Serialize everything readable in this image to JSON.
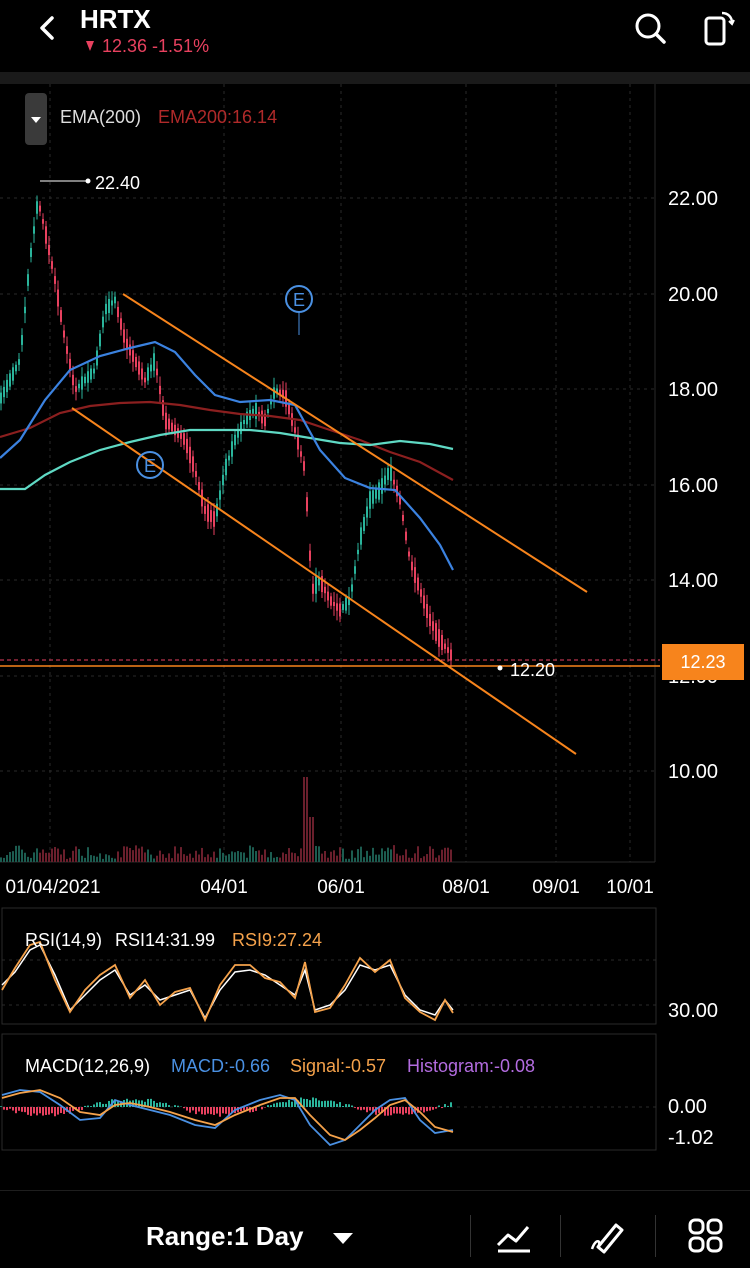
{
  "header": {
    "ticker": "HRTX",
    "change": "12.36 -1.51%",
    "colors": {
      "down": "#e8415f",
      "up": "#2ab49b"
    }
  },
  "indicator": {
    "ema_label": "EMA(200)",
    "ema_value": "EMA200:16.14"
  },
  "price_axis": [
    "22.00",
    "20.00",
    "18.00",
    "16.00",
    "14.00",
    "12.00",
    "10.00"
  ],
  "date_axis": [
    "01/04/2021",
    "04/01",
    "06/01",
    "08/01",
    "09/01",
    "10/01"
  ],
  "annotations": {
    "high_label": "22.40",
    "low_label": "12.20",
    "current_price": "12.23",
    "earnings_marker": "E"
  },
  "rsi": {
    "title": "RSI(14,9)",
    "rsi14": "RSI14:31.99",
    "rsi9": "RSI9:27.24",
    "axis_label": "30.00"
  },
  "macd": {
    "title": "MACD(12,26,9)",
    "macd": "MACD:-0.66",
    "signal": "Signal:-0.57",
    "histogram": "Histogram:-0.08",
    "axis_top": "0.00",
    "axis_bottom": "-1.02"
  },
  "bottom": {
    "range_label": "Range:1 Day",
    "icons": [
      "indicator-chart-icon",
      "draw-pen-icon",
      "grid-apps-icon"
    ]
  },
  "chart_data": {
    "type": "line",
    "title": "",
    "ylim": [
      9.2,
      23.6
    ],
    "y_ticks": [
      22,
      20,
      18,
      16,
      14,
      12,
      10
    ],
    "x": [
      "01/04/2021",
      "04/01",
      "06/01",
      "08/01",
      "09/01",
      "10/01"
    ],
    "price_range": [
      12.2,
      22.4
    ],
    "last_price": 12.23,
    "series": [
      {
        "name": "EMA200",
        "value": 16.14,
        "color": "#7a1c1c"
      },
      {
        "name": "RSI14",
        "value": 31.99,
        "color": "#ffffff"
      },
      {
        "name": "RSI9",
        "value": 27.24,
        "color": "#f5a24b"
      },
      {
        "name": "MACD",
        "value": -0.66,
        "color": "#4a90e2"
      },
      {
        "name": "Signal",
        "value": -0.57,
        "color": "#f5a24b"
      },
      {
        "name": "Histogram",
        "value": -0.08,
        "color": "#b36ce0"
      }
    ],
    "moving_average_colors": [
      "#3b82e0",
      "#5fd9c4",
      "#8b1f1f"
    ],
    "trendline_color": "#f7841c"
  }
}
